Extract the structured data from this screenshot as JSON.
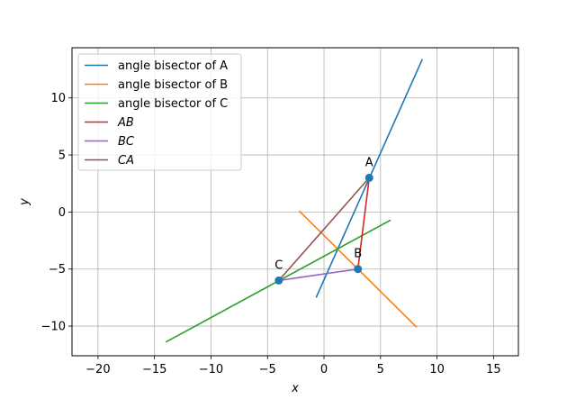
{
  "chart_data": {
    "type": "line",
    "title": "",
    "xlabel": "x",
    "ylabel": "y",
    "xlim": [
      -22.3,
      17.2
    ],
    "ylim": [
      -12.6,
      14.4
    ],
    "xticks": [
      -20,
      -15,
      -10,
      -5,
      0,
      5,
      10,
      15
    ],
    "yticks": [
      -10,
      -5,
      0,
      5,
      10
    ],
    "xtick_labels": [
      "−20",
      "−15",
      "−10",
      "−5",
      "0",
      "5",
      "10",
      "15"
    ],
    "ytick_labels": [
      "−10",
      "−5",
      "0",
      "5",
      "10"
    ],
    "grid": true,
    "legend_position": "upper-left",
    "series": [
      {
        "name": "angle bisector of A",
        "color": "#1f77b4",
        "italic": false,
        "points": [
          [
            -0.7,
            -7.5
          ],
          [
            8.7,
            13.4
          ]
        ]
      },
      {
        "name": "angle bisector of B",
        "color": "#ff7f0e",
        "italic": false,
        "points": [
          [
            -2.2,
            0.1
          ],
          [
            8.2,
            -10.1
          ]
        ]
      },
      {
        "name": "angle bisector of C",
        "color": "#2ca02c",
        "italic": false,
        "points": [
          [
            -14.0,
            -11.4
          ],
          [
            5.9,
            -0.7
          ]
        ]
      },
      {
        "name": "AB",
        "color": "#d62728",
        "italic": true,
        "points": [
          [
            4,
            3
          ],
          [
            3,
            -5
          ]
        ]
      },
      {
        "name": "BC",
        "color": "#9467bd",
        "italic": true,
        "points": [
          [
            3,
            -5
          ],
          [
            -4,
            -6
          ]
        ]
      },
      {
        "name": "CA",
        "color": "#8c564b",
        "italic": true,
        "points": [
          [
            -4,
            -6
          ],
          [
            4,
            3
          ]
        ]
      }
    ],
    "scatter": {
      "color": "#1f77b4",
      "points": [
        {
          "label": "A",
          "x": 4,
          "y": 3
        },
        {
          "label": "B",
          "x": 3,
          "y": -5
        },
        {
          "label": "C",
          "x": -4,
          "y": -6
        }
      ]
    }
  }
}
